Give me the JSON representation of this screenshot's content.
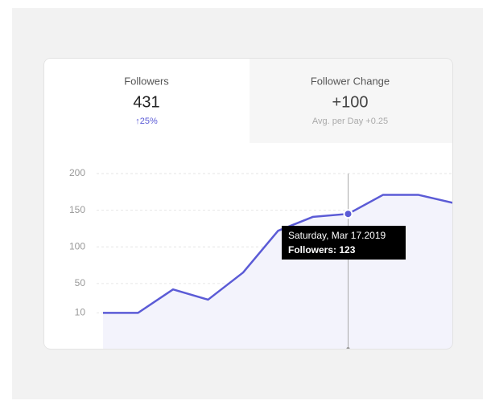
{
  "tabs": [
    {
      "label": "Followers",
      "value": "431",
      "change": "↑25%"
    },
    {
      "label": "Follower Change",
      "value": "+100",
      "change": "Avg. per Day +0.25"
    }
  ],
  "chart_data": {
    "type": "line",
    "color": "#5b5bd6",
    "categories": [
      null,
      null,
      null,
      null,
      null,
      null,
      null,
      null,
      null,
      null,
      null
    ],
    "values": [
      10,
      10,
      42,
      28,
      65,
      122,
      141,
      145,
      171,
      171,
      160
    ],
    "ylim": [
      -40,
      200
    ],
    "yticks": [
      10,
      50,
      100,
      150,
      200
    ],
    "grid": true,
    "tooltip": {
      "date": "Saturday, Mar 17.2019",
      "text": "Followers: 123"
    }
  }
}
